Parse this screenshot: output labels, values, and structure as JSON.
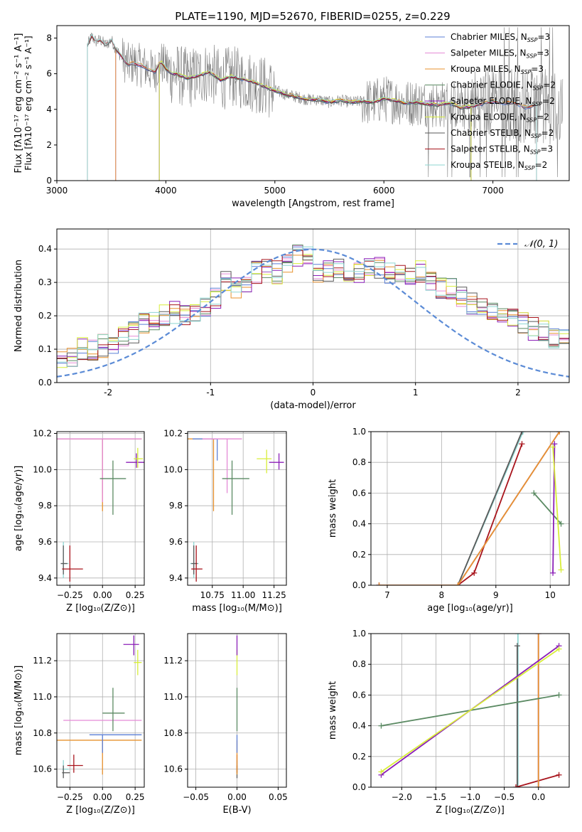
{
  "figure_title": "PLATE=1190, MJD=52670, FIBERID=0255, z=0.229",
  "colors": {
    "Chabrier MILES": "#5b7fd6",
    "Salpeter MILES": "#e58ad6",
    "Kroupa MILES": "#e8922e",
    "Chabrier ELODIE": "#5b8a63",
    "Salpeter ELODIE": "#8b1fb8",
    "Kroupa ELODIE": "#d8ee3a",
    "Chabrier STELIB": "#5a5a5a",
    "Salpeter STELIB": "#a8141c",
    "Kroupa STELIB": "#8ed6d2",
    "data": "#7f7f7f",
    "normal": "#5b8bd6"
  },
  "chart_data": [
    {
      "id": "spectrum",
      "type": "line",
      "title": "PLATE=1190, MJD=52670, FIBERID=0255, z=0.229",
      "xlabel": "wavelength [Angstrom, rest frame]",
      "ylabel": "Flux [fλ10⁻¹⁷ erg cm⁻² s⁻¹ A⁻¹]",
      "xlim": [
        3000,
        7700
      ],
      "ylim": [
        0,
        8.7
      ],
      "xticks": [
        3000,
        4000,
        5000,
        6000,
        7000
      ],
      "yticks": [
        0,
        2,
        4,
        6,
        8
      ],
      "grid": false,
      "legend_position": "top-right",
      "legend": [
        {
          "label": "Chabrier MILES, N",
          "sub": "SSP",
          "suffix": "=3"
        },
        {
          "label": "Salpeter MILES, N",
          "sub": "SSP",
          "suffix": "=3"
        },
        {
          "label": "Kroupa MILES, N",
          "sub": "SSP",
          "suffix": "=3"
        },
        {
          "label": "Chabrier ELODIE, N",
          "sub": "SSP",
          "suffix": "=2"
        },
        {
          "label": "Salpeter ELODIE, N",
          "sub": "SSP",
          "suffix": "=2"
        },
        {
          "label": "Kroupa ELODIE, N",
          "sub": "SSP",
          "suffix": "=2"
        },
        {
          "label": "Chabrier STELIB, N",
          "sub": "SSP",
          "suffix": "=2"
        },
        {
          "label": "Salpeter STELIB, N",
          "sub": "SSP",
          "suffix": "=3"
        },
        {
          "label": "Kroupa STELIB, N",
          "sub": "SSP",
          "suffix": "=2"
        }
      ],
      "continuum": {
        "wavelength": [
          3280,
          3320,
          3360,
          3400,
          3450,
          3500,
          3550,
          3600,
          3650,
          3700,
          3750,
          3800,
          3850,
          3900,
          3950,
          4000,
          4050,
          4100,
          4150,
          4200,
          4300,
          4400,
          4500,
          4600,
          4700,
          4800,
          4900,
          5000,
          5100,
          5200,
          5300,
          5400,
          5500,
          5600,
          5700,
          5800,
          5900,
          6000,
          6100,
          6200,
          6300,
          6400,
          6500,
          6600,
          6700,
          6800,
          6900,
          7000,
          7100,
          7200,
          7300,
          7400,
          7500,
          7600
        ],
        "flux": [
          7.6,
          8.1,
          7.8,
          7.9,
          7.6,
          7.9,
          7.3,
          6.9,
          6.5,
          6.6,
          6.5,
          6.4,
          6.2,
          6.1,
          6.7,
          6.3,
          6.0,
          6.0,
          5.85,
          5.75,
          5.9,
          6.1,
          5.65,
          5.85,
          5.7,
          5.55,
          5.3,
          5.05,
          4.85,
          4.7,
          4.55,
          4.55,
          4.4,
          4.5,
          4.4,
          4.45,
          4.4,
          4.6,
          4.5,
          4.35,
          4.4,
          4.3,
          4.25,
          4.35,
          4.1,
          4.15,
          4.3,
          4.45,
          4.35,
          4.35,
          4.1,
          4.25,
          4.15,
          4.0
        ]
      },
      "model_wave_range": {
        "MILES": [
          3540,
          7400
        ],
        "ELODIE": [
          3940,
          6800
        ],
        "STELIB": [
          3280,
          7400
        ]
      }
    },
    {
      "id": "residuals",
      "type": "histogram",
      "xlabel": "(data-model)/error",
      "ylabel": "Normed distribution",
      "xlim": [
        -2.5,
        2.5
      ],
      "ylim": [
        0,
        0.46
      ],
      "xticks": [
        -2,
        -1,
        0,
        1,
        2
      ],
      "yticks": [
        0.0,
        0.1,
        0.2,
        0.3,
        0.4
      ],
      "grid": true,
      "legend_position": "top-right",
      "legend_label": "𝒩(0, 1)",
      "bin_edges_start": -2.5,
      "bin_width": 0.1,
      "base_distribution": [
        0.06,
        0.08,
        0.1,
        0.1,
        0.11,
        0.12,
        0.14,
        0.15,
        0.18,
        0.19,
        0.2,
        0.21,
        0.2,
        0.2,
        0.22,
        0.25,
        0.3,
        0.28,
        0.3,
        0.33,
        0.34,
        0.33,
        0.36,
        0.38,
        0.38,
        0.33,
        0.33,
        0.34,
        0.32,
        0.33,
        0.35,
        0.34,
        0.33,
        0.32,
        0.31,
        0.33,
        0.3,
        0.28,
        0.28,
        0.26,
        0.24,
        0.23,
        0.22,
        0.2,
        0.19,
        0.18,
        0.16,
        0.15,
        0.13,
        0.13
      ]
    },
    {
      "id": "age_vs_Z",
      "type": "scatter",
      "xlabel": "Z [log₁₀(Z/Z⊙)]",
      "ylabel": "age  [log₁₀(age/yr)]",
      "xlim": [
        -0.35,
        0.32
      ],
      "ylim": [
        9.36,
        10.21
      ],
      "xticks": [
        -0.25,
        0.0,
        0.25
      ],
      "xticklabels": [
        "−0.25",
        "0.00",
        "0.25"
      ],
      "yticks": [
        9.4,
        9.6,
        9.8,
        10.0,
        10.2
      ],
      "grid": true,
      "points": [
        {
          "model": "Kroupa STELIB",
          "x": -0.3,
          "y": 9.48,
          "xerr": [
            0.02,
            0.04
          ],
          "yerr": [
            0.08,
            0.12
          ]
        },
        {
          "model": "Chabrier STELIB",
          "x": -0.3,
          "y": 9.48,
          "xerr": [
            0.02,
            0.03
          ],
          "yerr": [
            0.06,
            0.1
          ]
        },
        {
          "model": "Salpeter STELIB",
          "x": -0.25,
          "y": 9.45,
          "xerr": [
            0.06,
            0.1
          ],
          "yerr": [
            0.07,
            0.13
          ]
        },
        {
          "model": "Chabrier MILES",
          "x": 0.0,
          "y": 10.17,
          "xerr": [
            0.35,
            0.3
          ],
          "yerr": [
            0.3,
            0.0
          ]
        },
        {
          "model": "Kroupa MILES",
          "x": 0.0,
          "y": 10.17,
          "xerr": [
            0.35,
            0.3
          ],
          "yerr": [
            0.4,
            0.0
          ]
        },
        {
          "model": "Salpeter MILES",
          "x": 0.0,
          "y": 10.17,
          "xerr": [
            0.35,
            0.3
          ],
          "yerr": [
            0.35,
            0.0
          ]
        },
        {
          "model": "Chabrier ELODIE",
          "x": 0.08,
          "y": 9.95,
          "xerr": [
            0.1,
            0.1
          ],
          "yerr": [
            0.2,
            0.1
          ]
        },
        {
          "model": "Salpeter ELODIE",
          "x": 0.26,
          "y": 10.04,
          "xerr": [
            0.08,
            0.06
          ],
          "yerr": [
            0.03,
            0.05
          ]
        },
        {
          "model": "Kroupa ELODIE",
          "x": 0.27,
          "y": 10.06,
          "xerr": [
            0.03,
            0.04
          ],
          "yerr": [
            0.05,
            0.06
          ]
        }
      ]
    },
    {
      "id": "age_vs_mass",
      "type": "scatter",
      "xlabel": "mass [log₁₀(M/M⊙)]",
      "ylabel": "",
      "xlim": [
        10.55,
        11.35
      ],
      "ylim": [
        9.36,
        10.21
      ],
      "xticks": [
        10.75,
        11.0,
        11.25
      ],
      "xticklabels": [
        "10.75",
        "11.00",
        "11.25"
      ],
      "yticks": [
        9.4,
        9.6,
        9.8,
        10.0,
        10.2
      ],
      "grid": true,
      "points": [
        {
          "model": "Kroupa STELIB",
          "x": 10.6,
          "y": 9.48,
          "xerr": [
            0.03,
            0.04
          ],
          "yerr": [
            0.08,
            0.12
          ]
        },
        {
          "model": "Chabrier STELIB",
          "x": 10.6,
          "y": 9.48,
          "xerr": [
            0.02,
            0.03
          ],
          "yerr": [
            0.06,
            0.1
          ]
        },
        {
          "model": "Salpeter STELIB",
          "x": 10.62,
          "y": 9.45,
          "xerr": [
            0.04,
            0.05
          ],
          "yerr": [
            0.07,
            0.13
          ]
        },
        {
          "model": "Kroupa MILES",
          "x": 10.76,
          "y": 10.17,
          "xerr": [
            0.21,
            0.0
          ],
          "yerr": [
            0.4,
            0.0
          ]
        },
        {
          "model": "Chabrier MILES",
          "x": 10.79,
          "y": 10.17,
          "xerr": [
            0.2,
            0.0
          ],
          "yerr": [
            0.12,
            0.0
          ]
        },
        {
          "model": "Salpeter MILES",
          "x": 10.87,
          "y": 10.17,
          "xerr": [
            0.2,
            0.12
          ],
          "yerr": [
            0.3,
            0.0
          ]
        },
        {
          "model": "Chabrier ELODIE",
          "x": 10.91,
          "y": 9.95,
          "xerr": [
            0.08,
            0.14
          ],
          "yerr": [
            0.2,
            0.1
          ]
        },
        {
          "model": "Kroupa ELODIE",
          "x": 11.19,
          "y": 10.06,
          "xerr": [
            0.08,
            0.04
          ],
          "yerr": [
            0.08,
            0.05
          ]
        },
        {
          "model": "Salpeter ELODIE",
          "x": 11.29,
          "y": 10.04,
          "xerr": [
            0.08,
            0.04
          ],
          "yerr": [
            0.04,
            0.05
          ]
        }
      ]
    },
    {
      "id": "weight_vs_age",
      "type": "line",
      "xlabel": "age  [log₁₀(age/yr)]",
      "ylabel": "mass weight",
      "xlim": [
        6.7,
        10.35
      ],
      "ylim": [
        0,
        1.0
      ],
      "xticks": [
        7,
        8,
        9,
        10
      ],
      "yticks": [
        0.0,
        0.2,
        0.4,
        0.6,
        0.8,
        1.0
      ],
      "grid": true,
      "series": [
        {
          "model": "Kroupa STELIB",
          "x": [
            6.85,
            8.3,
            9.5
          ],
          "y": [
            0.0,
            0.0,
            1.0
          ]
        },
        {
          "model": "Chabrier STELIB",
          "x": [
            8.3,
            9.48
          ],
          "y": [
            0.0,
            1.0
          ]
        },
        {
          "model": "Salpeter STELIB",
          "x": [
            6.85,
            8.3,
            8.6,
            9.48
          ],
          "y": [
            0.0,
            0.0,
            0.08,
            0.92
          ]
        },
        {
          "model": "Chabrier MILES",
          "x": [
            6.85,
            8.3,
            10.17
          ],
          "y": [
            0.0,
            0.0,
            1.0
          ]
        },
        {
          "model": "Salpeter MILES",
          "x": [
            6.85,
            8.3,
            10.17
          ],
          "y": [
            0.0,
            0.0,
            1.0
          ]
        },
        {
          "model": "Kroupa MILES",
          "x": [
            6.85,
            8.3,
            10.17
          ],
          "y": [
            0.0,
            0.0,
            1.0
          ]
        },
        {
          "model": "Chabrier ELODIE",
          "x": [
            9.7,
            10.2
          ],
          "y": [
            0.6,
            0.4
          ]
        },
        {
          "model": "Salpeter ELODIE",
          "x": [
            10.05,
            10.08
          ],
          "y": [
            0.08,
            0.92
          ]
        },
        {
          "model": "Kroupa ELODIE",
          "x": [
            10.05,
            10.2
          ],
          "y": [
            0.9,
            0.1
          ]
        }
      ]
    },
    {
      "id": "mass_vs_Z",
      "type": "scatter",
      "xlabel": "Z [log₁₀(Z/Z⊙)]",
      "ylabel": "mass [log₁₀(M/M⊙)]",
      "xlim": [
        -0.35,
        0.32
      ],
      "ylim": [
        10.5,
        11.35
      ],
      "xticks": [
        -0.25,
        0.0,
        0.25
      ],
      "xticklabels": [
        "−0.25",
        "0.00",
        "0.25"
      ],
      "yticks": [
        10.6,
        10.8,
        11.0,
        11.2
      ],
      "grid": true,
      "points": [
        {
          "model": "Kroupa STELIB",
          "x": -0.3,
          "y": 10.6,
          "xerr": [
            0.01,
            0.04
          ],
          "yerr": [
            0.03,
            0.05
          ]
        },
        {
          "model": "Chabrier STELIB",
          "x": -0.3,
          "y": 10.58,
          "xerr": [
            0.01,
            0.05
          ],
          "yerr": [
            0.03,
            0.04
          ]
        },
        {
          "model": "Salpeter STELIB",
          "x": -0.22,
          "y": 10.62,
          "xerr": [
            0.05,
            0.07
          ],
          "yerr": [
            0.04,
            0.06
          ]
        },
        {
          "model": "Kroupa MILES",
          "x": 0.0,
          "y": 10.76,
          "xerr": [
            0.35,
            0.3
          ],
          "yerr": [
            0.19,
            0.0
          ]
        },
        {
          "model": "Chabrier MILES",
          "x": 0.0,
          "y": 10.79,
          "xerr": [
            0.1,
            0.3
          ],
          "yerr": [
            0.1,
            0.0
          ]
        },
        {
          "model": "Salpeter MILES",
          "x": 0.0,
          "y": 10.87,
          "xerr": [
            0.3,
            0.3
          ],
          "yerr": [
            0.0,
            0.0
          ]
        },
        {
          "model": "Chabrier ELODIE",
          "x": 0.08,
          "y": 10.91,
          "xerr": [
            0.08,
            0.09
          ],
          "yerr": [
            0.1,
            0.14
          ]
        },
        {
          "model": "Kroupa ELODIE",
          "x": 0.27,
          "y": 11.19,
          "xerr": [
            0.03,
            0.03
          ],
          "yerr": [
            0.07,
            0.07
          ]
        },
        {
          "model": "Salpeter ELODIE",
          "x": 0.24,
          "y": 11.29,
          "xerr": [
            0.08,
            0.04
          ],
          "yerr": [
            0.06,
            0.05
          ]
        }
      ]
    },
    {
      "id": "mass_vs_ebv",
      "type": "scatter",
      "xlabel": "E(B-V)",
      "ylabel": "",
      "xlim": [
        -0.06,
        0.06
      ],
      "ylim": [
        10.5,
        11.35
      ],
      "xticks": [
        -0.05,
        0.0,
        0.05
      ],
      "xticklabels": [
        "−0.05",
        "0.00",
        "0.05"
      ],
      "yticks": [
        10.6,
        10.8,
        11.0,
        11.2
      ],
      "grid": true,
      "points": [
        {
          "model": "Kroupa STELIB",
          "x": 0.0,
          "y": 10.6,
          "yerr": [
            0.03,
            0.05
          ]
        },
        {
          "model": "Chabrier STELIB",
          "x": 0.0,
          "y": 10.58,
          "yerr": [
            0.03,
            0.04
          ]
        },
        {
          "model": "Salpeter STELIB",
          "x": 0.0,
          "y": 10.62,
          "yerr": [
            0.04,
            0.06
          ]
        },
        {
          "model": "Kroupa MILES",
          "x": 0.0,
          "y": 10.76,
          "yerr": [
            0.19,
            0.0
          ]
        },
        {
          "model": "Chabrier MILES",
          "x": 0.0,
          "y": 10.79,
          "yerr": [
            0.1,
            0.0
          ]
        },
        {
          "model": "Salpeter MILES",
          "x": 0.0,
          "y": 10.87,
          "yerr": [
            0.0,
            0.0
          ]
        },
        {
          "model": "Chabrier ELODIE",
          "x": 0.0,
          "y": 10.91,
          "yerr": [
            0.1,
            0.14
          ]
        },
        {
          "model": "Kroupa ELODIE",
          "x": 0.0,
          "y": 11.19,
          "yerr": [
            0.07,
            0.07
          ]
        },
        {
          "model": "Salpeter ELODIE",
          "x": 0.0,
          "y": 11.29,
          "yerr": [
            0.06,
            0.05
          ]
        }
      ]
    },
    {
      "id": "weight_vs_Z",
      "type": "line",
      "xlabel": "Z [log₁₀(Z/Z⊙)]",
      "ylabel": "mass weight",
      "xlim": [
        -2.45,
        0.45
      ],
      "ylim": [
        0,
        1.0
      ],
      "xticks": [
        -2.0,
        -1.5,
        -1.0,
        -0.5,
        0.0
      ],
      "xticklabels": [
        "−2.0",
        "−1.5",
        "−1.0",
        "−0.5",
        "0.0"
      ],
      "yticks": [
        0.0,
        0.2,
        0.4,
        0.6,
        0.8,
        1.0
      ],
      "grid": true,
      "series": [
        {
          "model": "Kroupa STELIB",
          "x": [
            -0.3,
            -0.3
          ],
          "y": [
            0.0,
            1.0
          ]
        },
        {
          "model": "Chabrier STELIB",
          "x": [
            -0.31,
            -0.31
          ],
          "y": [
            0.0,
            0.92
          ]
        },
        {
          "model": "Salpeter STELIB",
          "x": [
            -0.33,
            0.3
          ],
          "y": [
            0.0,
            0.08
          ]
        },
        {
          "model": "Chabrier MILES",
          "x": [
            0.0,
            0.0
          ],
          "y": [
            0.0,
            1.0
          ]
        },
        {
          "model": "Salpeter MILES",
          "x": [
            0.0,
            0.0
          ],
          "y": [
            0.0,
            1.0
          ]
        },
        {
          "model": "Kroupa MILES",
          "x": [
            0.0,
            0.0
          ],
          "y": [
            0.0,
            1.0
          ]
        },
        {
          "model": "Chabrier ELODIE",
          "x": [
            -2.3,
            0.3
          ],
          "y": [
            0.4,
            0.6
          ]
        },
        {
          "model": "Salpeter ELODIE",
          "x": [
            -2.3,
            0.3
          ],
          "y": [
            0.08,
            0.92
          ]
        },
        {
          "model": "Kroupa ELODIE",
          "x": [
            -2.3,
            0.3
          ],
          "y": [
            0.1,
            0.9
          ]
        }
      ]
    }
  ]
}
